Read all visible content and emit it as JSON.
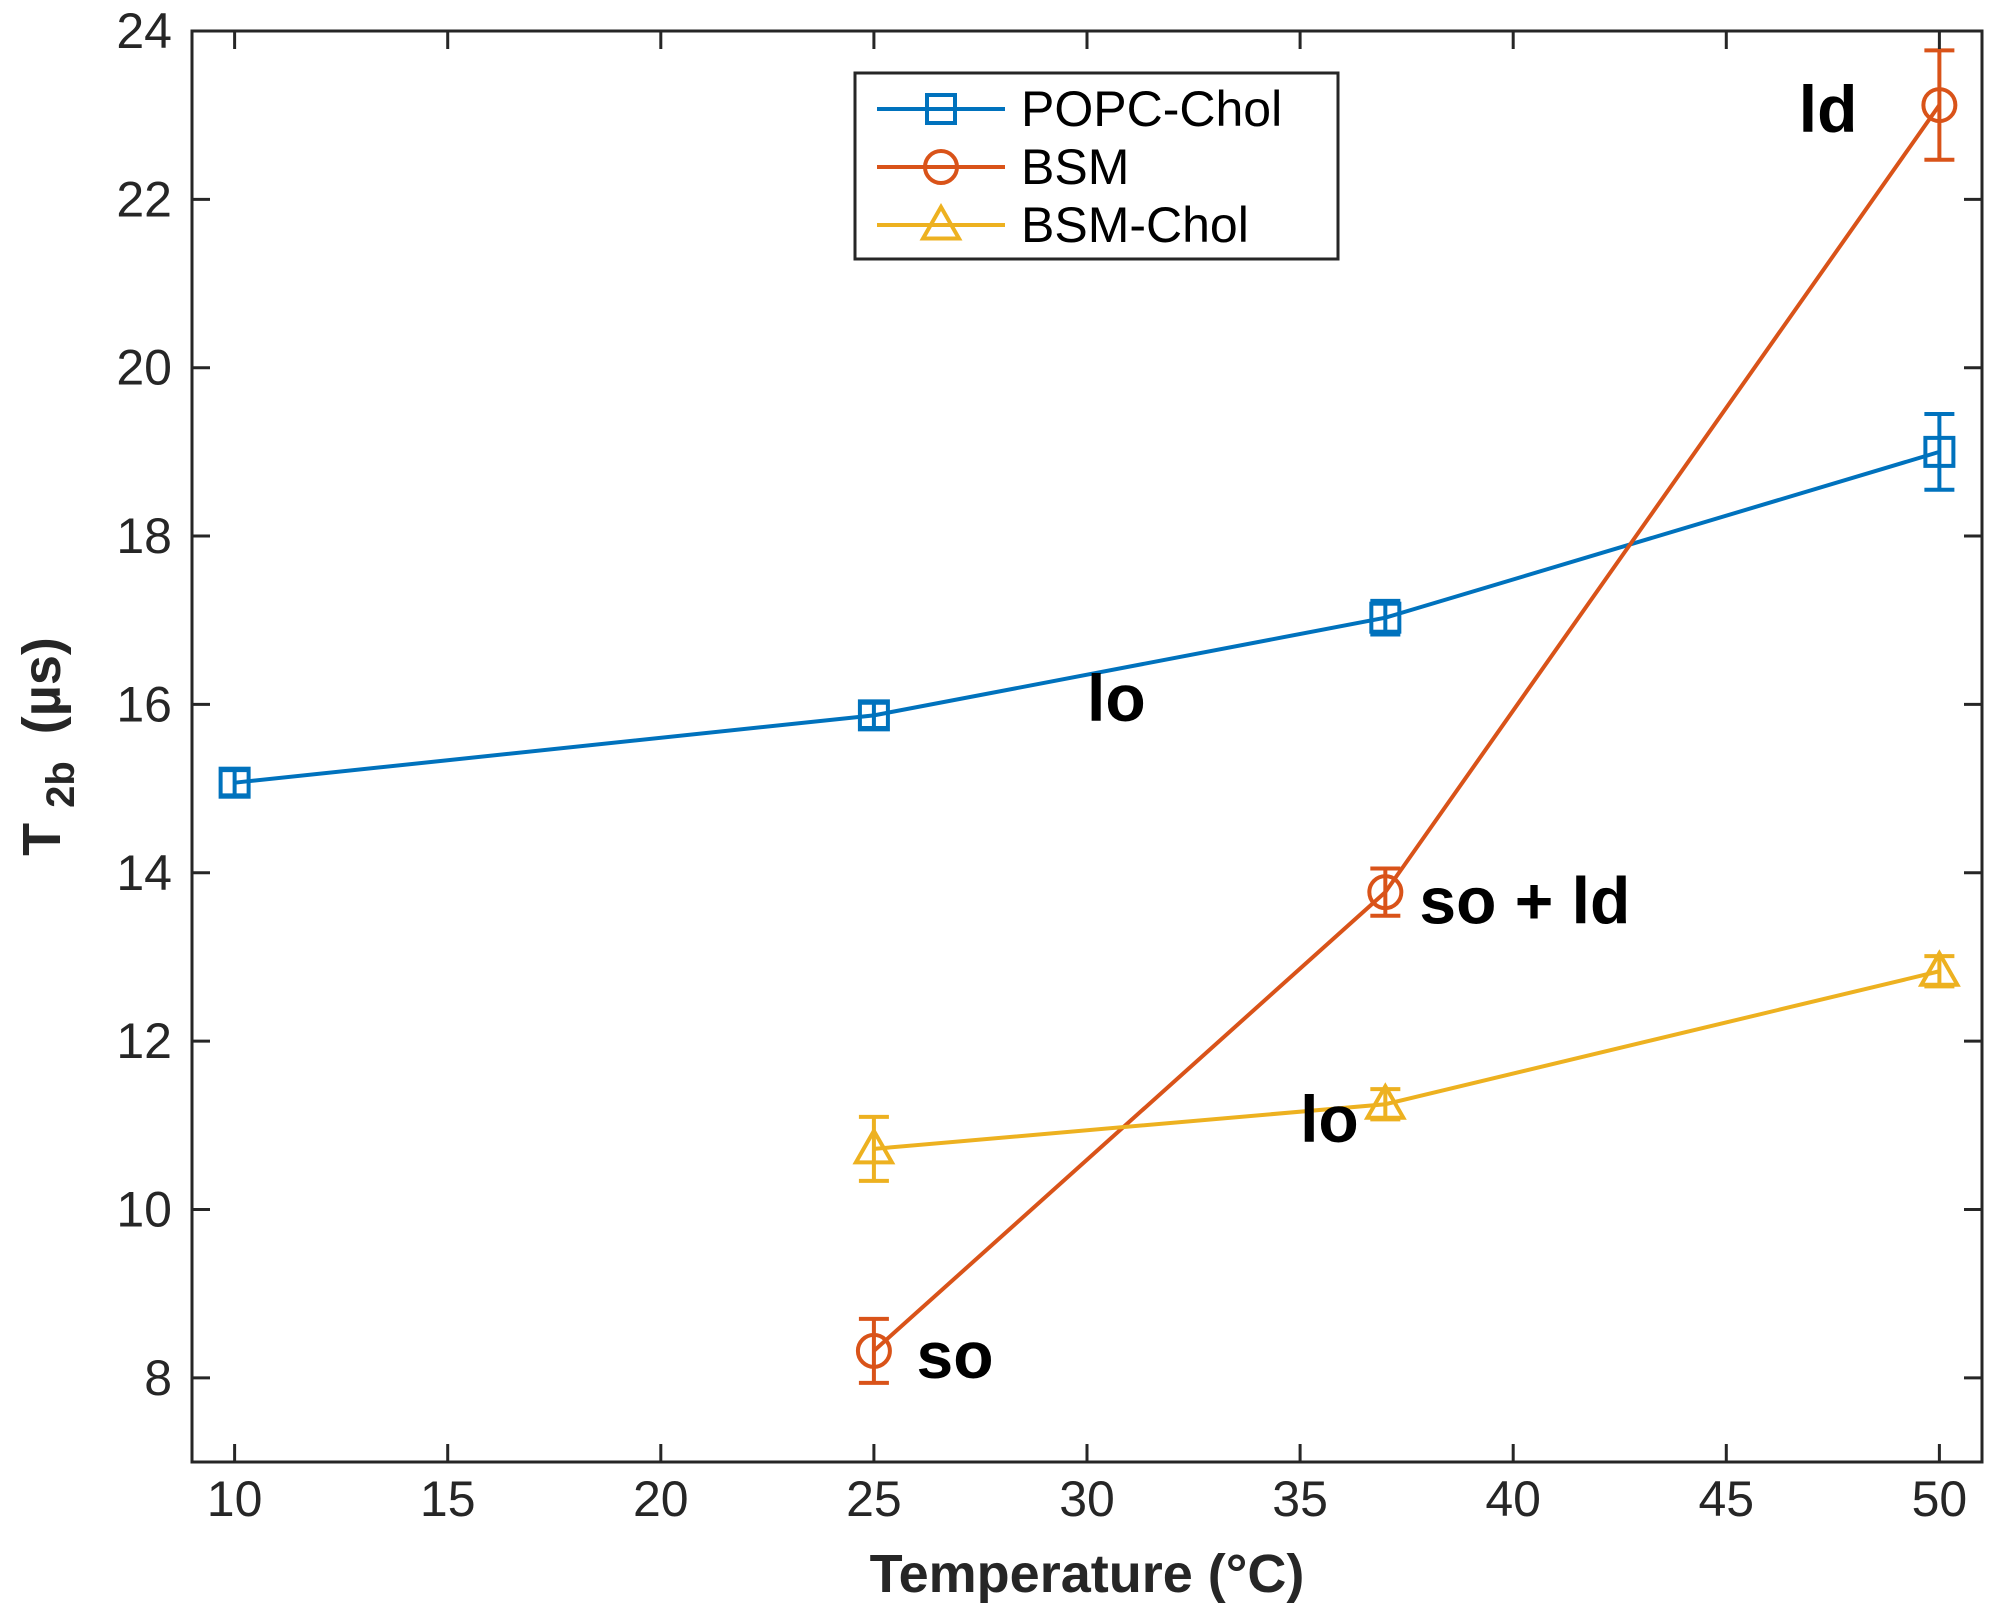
{
  "chart_data": {
    "type": "line",
    "title": "",
    "xlabel": "Temperature (°C)",
    "ylabel": {
      "main": "T",
      "subscript": "2b",
      "unit": "(µs)"
    },
    "xlim": [
      9,
      51
    ],
    "ylim": [
      7,
      24
    ],
    "x_ticks": [
      10,
      15,
      20,
      25,
      30,
      35,
      40,
      45,
      50
    ],
    "y_ticks": [
      8,
      10,
      12,
      14,
      16,
      18,
      20,
      22,
      24
    ],
    "grid": false,
    "legend_position": "top-center",
    "series": [
      {
        "name": "POPC-Chol",
        "color": "#0072BD",
        "marker": "square",
        "points": [
          {
            "x": 10,
            "y": 15.07,
            "err": 0.15
          },
          {
            "x": 25,
            "y": 15.87,
            "err": 0.15
          },
          {
            "x": 37,
            "y": 17.03,
            "err": 0.2
          },
          {
            "x": 50,
            "y": 19.0,
            "err": 0.45
          }
        ]
      },
      {
        "name": "BSM",
        "color": "#D95319",
        "marker": "circle",
        "points": [
          {
            "x": 25,
            "y": 8.32,
            "err": 0.38
          },
          {
            "x": 37,
            "y": 13.77,
            "err": 0.28
          },
          {
            "x": 50,
            "y": 23.12,
            "err": 0.65
          }
        ]
      },
      {
        "name": "BSM-Chol",
        "color": "#EDB120",
        "marker": "triangle",
        "points": [
          {
            "x": 25,
            "y": 10.72,
            "err": 0.38
          },
          {
            "x": 37,
            "y": 11.25,
            "err": 0.18
          },
          {
            "x": 50,
            "y": 12.83,
            "err": 0.18
          }
        ]
      }
    ],
    "annotations": [
      {
        "text": "ld",
        "x": 46.7,
        "y": 22.8
      },
      {
        "text": "lo",
        "x": 30.0,
        "y": 15.8
      },
      {
        "text": "so + ld",
        "x": 37.8,
        "y": 13.4
      },
      {
        "text": "lo",
        "x": 35.0,
        "y": 10.8
      },
      {
        "text": "so",
        "x": 26.0,
        "y": 8.0
      }
    ]
  }
}
